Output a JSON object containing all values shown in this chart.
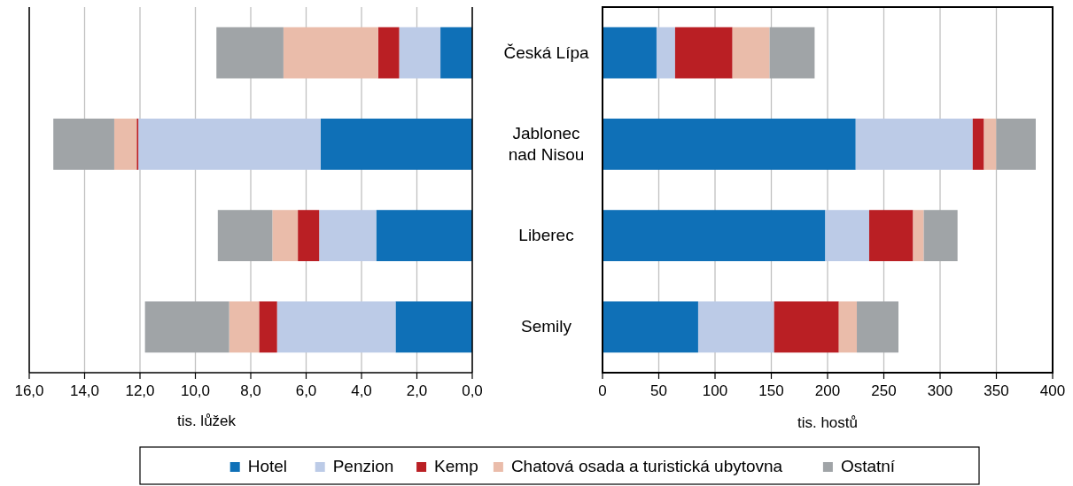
{
  "chart_data": [
    {
      "type": "bar",
      "orientation": "horizontal",
      "stacked": true,
      "categories": [
        "Česká Lípa",
        "Jablonec nad Nisou",
        "Liberec",
        "Semily"
      ],
      "xlabel": "tis. lůžek",
      "xlim": [
        16,
        0
      ],
      "xticks": [
        {
          "value": 16,
          "label": "16,0"
        },
        {
          "value": 14,
          "label": "14,0"
        },
        {
          "value": 12,
          "label": "12,0"
        },
        {
          "value": 10,
          "label": "10,0"
        },
        {
          "value": 8,
          "label": "8,0"
        },
        {
          "value": 6,
          "label": "6,0"
        },
        {
          "value": 4,
          "label": "4,0"
        },
        {
          "value": 2,
          "label": "2,0"
        },
        {
          "value": 0,
          "label": "0,0"
        }
      ],
      "grid": "x",
      "tick_labels": "x",
      "legend": "bottom",
      "series": [
        {
          "name": "Hotel",
          "color": "#0f70b7",
          "values": [
            1.15,
            5.48,
            3.47,
            2.77
          ]
        },
        {
          "name": "Penzion",
          "color": "#bccbe7",
          "values": [
            1.49,
            6.58,
            2.06,
            4.28
          ]
        },
        {
          "name": "Kemp",
          "color": "#ba1f24",
          "values": [
            0.76,
            0.06,
            0.77,
            0.65
          ]
        },
        {
          "name": "Chatová osada a turistická ubytovna",
          "color": "#eabcaa",
          "values": [
            3.42,
            0.81,
            0.92,
            1.08
          ]
        },
        {
          "name": "Ostatní",
          "color": "#a0a4a7",
          "values": [
            2.42,
            2.2,
            1.97,
            3.04
          ]
        }
      ]
    },
    {
      "type": "bar",
      "orientation": "horizontal",
      "stacked": true,
      "categories": [
        "Česká Lípa",
        "Jablonec nad Nisou",
        "Liberec",
        "Semily"
      ],
      "xlabel": "tis. hostů",
      "xlim": [
        0,
        400
      ],
      "xticks": [
        0,
        50,
        100,
        150,
        200,
        250,
        300,
        350,
        400
      ],
      "grid": "x",
      "legend": "bottom",
      "series": [
        {
          "name": "Hotel",
          "color": "#0f70b7",
          "values": [
            48,
            225,
            198,
            85
          ]
        },
        {
          "name": "Penzion",
          "color": "#bccbe7",
          "values": [
            16.5,
            104,
            39,
            67.5
          ]
        },
        {
          "name": "Kemp",
          "color": "#ba1f24",
          "values": [
            51,
            10,
            39,
            57.5
          ]
        },
        {
          "name": "Chatová osada a turistická ubytovna",
          "color": "#eabcaa",
          "values": [
            33,
            11,
            9.5,
            16
          ]
        },
        {
          "name": "Ostatní",
          "color": "#a0a4a7",
          "values": [
            40,
            35,
            30,
            37
          ]
        }
      ]
    }
  ]
}
